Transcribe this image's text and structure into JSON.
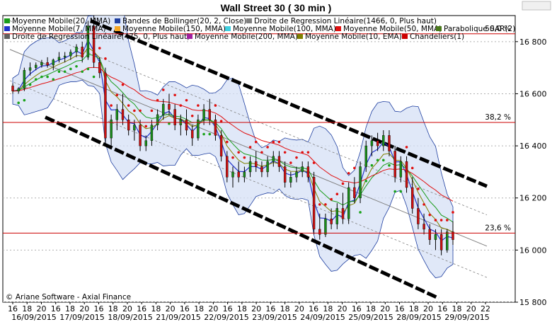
{
  "chart_data": {
    "type": "candlestick",
    "title": "Wall Street 30  ( 30 min )",
    "copyright": "© Ariane Software - Axial Finance",
    "ylim": [
      15800,
      16900
    ],
    "y_ticks": [
      15800,
      16000,
      16200,
      16400,
      16600,
      16800
    ],
    "y_tick_labels": [
      "15 800",
      "16 000",
      "16 200",
      "16 400",
      "16 600",
      "16 800"
    ],
    "x_hour_labels": [
      "16",
      "18",
      "20",
      "16",
      "18",
      "20",
      "16",
      "18",
      "20",
      "16",
      "18",
      "20",
      "16",
      "18",
      "20",
      "16",
      "18",
      "20",
      "16",
      "18",
      "20",
      "16",
      "18",
      "20",
      "16",
      "18",
      "20",
      "16",
      "18",
      "20",
      "16",
      "18",
      "20",
      "22"
    ],
    "x_date_labels": [
      "16/09/2015",
      "17/09/2015",
      "18/09/2015",
      "21/09/2015",
      "22/09/2015",
      "23/09/2015",
      "24/09/2015",
      "25/09/2015",
      "28/09/2015",
      "29/09/2015"
    ],
    "fibonacci": [
      {
        "label": "50,0 %",
        "value": 16830
      },
      {
        "label": "38,2 %",
        "value": 16490
      },
      {
        "label": "23,6 %",
        "value": 16065
      }
    ],
    "legend": [
      {
        "name": "Moyenne Mobile(20, MMA)",
        "color": "#1a9c1a"
      },
      {
        "name": "Bandes de Bollinger(20, 2, Close)",
        "color": "#1f3fa0"
      },
      {
        "name": "Droite de Regression Linéaire(1466, 0, Plus haut)",
        "color": "#808080"
      },
      {
        "name": "Moyenne Mobile(7, MMA)",
        "color": "#2233cc"
      },
      {
        "name": "Moyenne Mobile(150, MMA)",
        "color": "#f5a623"
      },
      {
        "name": "Moyenne Mobile(100, MMA)",
        "color": "#40d0e0"
      },
      {
        "name": "Moyenne Mobile(50, MMA)",
        "color": "#e01010"
      },
      {
        "name": "Parabolique SAR(2)",
        "color": "#4a7a1a"
      },
      {
        "name": "Droite de Regression Linéaire(475, 0, Plus haut)",
        "color": "#606060"
      },
      {
        "name": "Moyenne Mobile(200, MMA)",
        "color": "#a020a0"
      },
      {
        "name": "Moyenne Mobile(10, EMA)",
        "color": "#808000"
      },
      {
        "name": "Chandeliers(1)",
        "color": "#cc0000"
      }
    ],
    "candles": [
      [
        16630,
        16640,
        16600,
        16610
      ],
      [
        16610,
        16625,
        16600,
        16620
      ],
      [
        16620,
        16700,
        16610,
        16690
      ],
      [
        16690,
        16720,
        16670,
        16700
      ],
      [
        16700,
        16720,
        16690,
        16710
      ],
      [
        16710,
        16730,
        16700,
        16720
      ],
      [
        16720,
        16740,
        16700,
        16710
      ],
      [
        16710,
        16735,
        16690,
        16730
      ],
      [
        16730,
        16760,
        16720,
        16740
      ],
      [
        16740,
        16760,
        16720,
        16745
      ],
      [
        16745,
        16770,
        16730,
        16760
      ],
      [
        16760,
        16790,
        16740,
        16780
      ],
      [
        16780,
        16800,
        16720,
        16740
      ],
      [
        16740,
        16880,
        16730,
        16860
      ],
      [
        16860,
        16900,
        16700,
        16720
      ],
      [
        16720,
        16740,
        16660,
        16680
      ],
      [
        16680,
        16700,
        16400,
        16430
      ],
      [
        16430,
        16520,
        16400,
        16500
      ],
      [
        16500,
        16560,
        16460,
        16540
      ],
      [
        16540,
        16600,
        16480,
        16500
      ],
      [
        16500,
        16520,
        16440,
        16460
      ],
      [
        16460,
        16500,
        16420,
        16480
      ],
      [
        16480,
        16500,
        16380,
        16400
      ],
      [
        16400,
        16440,
        16380,
        16420
      ],
      [
        16420,
        16500,
        16400,
        16480
      ],
      [
        16480,
        16540,
        16460,
        16520
      ],
      [
        16520,
        16580,
        16500,
        16560
      ],
      [
        16560,
        16600,
        16520,
        16540
      ],
      [
        16540,
        16560,
        16460,
        16480
      ],
      [
        16480,
        16520,
        16440,
        16500
      ],
      [
        16500,
        16540,
        16440,
        16460
      ],
      [
        16460,
        16480,
        16400,
        16430
      ],
      [
        16430,
        16520,
        16420,
        16500
      ],
      [
        16500,
        16560,
        16480,
        16540
      ],
      [
        16540,
        16580,
        16480,
        16500
      ],
      [
        16500,
        16520,
        16420,
        16440
      ],
      [
        16440,
        16460,
        16340,
        16360
      ],
      [
        16360,
        16380,
        16260,
        16280
      ],
      [
        16280,
        16320,
        16240,
        16300
      ],
      [
        16300,
        16340,
        16260,
        16280
      ],
      [
        16280,
        16320,
        16260,
        16300
      ],
      [
        16300,
        16360,
        16280,
        16340
      ],
      [
        16340,
        16380,
        16300,
        16320
      ],
      [
        16320,
        16340,
        16280,
        16300
      ],
      [
        16300,
        16360,
        16280,
        16340
      ],
      [
        16340,
        16380,
        16320,
        16360
      ],
      [
        16360,
        16380,
        16300,
        16320
      ],
      [
        16320,
        16340,
        16240,
        16260
      ],
      [
        16260,
        16300,
        16240,
        16280
      ],
      [
        16280,
        16320,
        16260,
        16300
      ],
      [
        16300,
        16340,
        16280,
        16320
      ],
      [
        16320,
        16340,
        16260,
        16280
      ],
      [
        16280,
        16300,
        16060,
        16080
      ],
      [
        16080,
        16140,
        16040,
        16060
      ],
      [
        16060,
        16140,
        16050,
        16120
      ],
      [
        16120,
        16160,
        16080,
        16100
      ],
      [
        16100,
        16180,
        16080,
        16160
      ],
      [
        16160,
        16220,
        16100,
        16120
      ],
      [
        16120,
        16260,
        16100,
        16240
      ],
      [
        16240,
        16280,
        16180,
        16200
      ],
      [
        16200,
        16340,
        16180,
        16320
      ],
      [
        16320,
        16420,
        16300,
        16400
      ],
      [
        16400,
        16440,
        16360,
        16420
      ],
      [
        16420,
        16450,
        16380,
        16400
      ],
      [
        16400,
        16460,
        16380,
        16440
      ],
      [
        16440,
        16460,
        16360,
        16380
      ],
      [
        16380,
        16400,
        16260,
        16280
      ],
      [
        16280,
        16360,
        16260,
        16340
      ],
      [
        16340,
        16360,
        16220,
        16240
      ],
      [
        16240,
        16280,
        16140,
        16160
      ],
      [
        16160,
        16200,
        16080,
        16100
      ],
      [
        16100,
        16140,
        16060,
        16080
      ],
      [
        16080,
        16100,
        16020,
        16040
      ],
      [
        16040,
        16080,
        16000,
        16060
      ],
      [
        16060,
        16080,
        15980,
        16000
      ],
      [
        16000,
        16080,
        15990,
        16070
      ],
      [
        16070,
        16110,
        16020,
        16040
      ]
    ]
  }
}
